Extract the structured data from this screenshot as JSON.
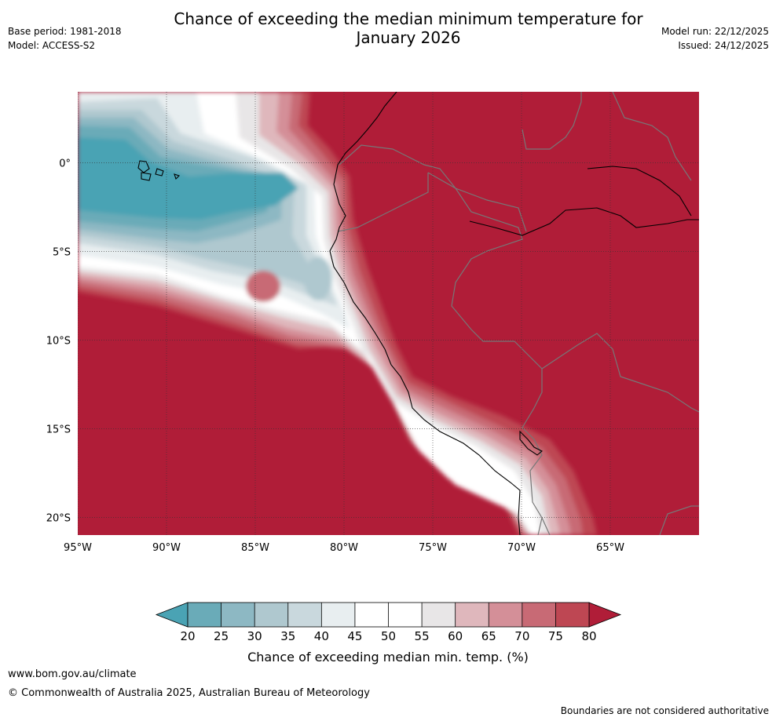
{
  "title_line1": "Chance of exceeding the median minimum temperature for",
  "title_line2": "January 2026",
  "meta_left": {
    "base_period": "Base period: 1981-2018",
    "model": "Model: ACCESS-S2"
  },
  "meta_right": {
    "model_run": "Model run: 22/12/2025",
    "issued": "Issued: 24/12/2025"
  },
  "map": {
    "lon_labels": [
      "95°W",
      "90°W",
      "85°W",
      "80°W",
      "75°W",
      "70°W",
      "65°W"
    ],
    "lat_labels": [
      "0°",
      "5°S",
      "10°S",
      "15°S",
      "20°S"
    ],
    "extent": {
      "lon_min": -95,
      "lon_max": -60,
      "lat_min": -21,
      "lat_max": 4
    }
  },
  "colorbar": {
    "title": "Chance of exceeding median min. temp. (%)",
    "ticks": [
      "20",
      "25",
      "30",
      "35",
      "40",
      "45",
      "50",
      "55",
      "60",
      "65",
      "70",
      "75",
      "80"
    ]
  },
  "colors": {
    "below_20": "#4aa3b4",
    "20_25": "#6aabb8",
    "25_30": "#8db8c3",
    "30_35": "#afc8cf",
    "35_40": "#c9d8dd",
    "40_45": "#e8eef0",
    "45_50": "#ffffff",
    "50_55": "#ffffff",
    "55_60": "#e8e6e7",
    "60_65": "#dfb7bc",
    "65_70": "#d48f98",
    "70_75": "#c86a75",
    "75_80": "#be4753",
    "above_80": "#b01d38",
    "boundary": "#777777",
    "coast": "#000000"
  },
  "footer": {
    "website": "www.bom.gov.au/climate",
    "copyright": "© Commonwealth of Australia 2025, Australian Bureau of Meteorology",
    "disclaimer": "Boundaries are not considered authoritative"
  }
}
